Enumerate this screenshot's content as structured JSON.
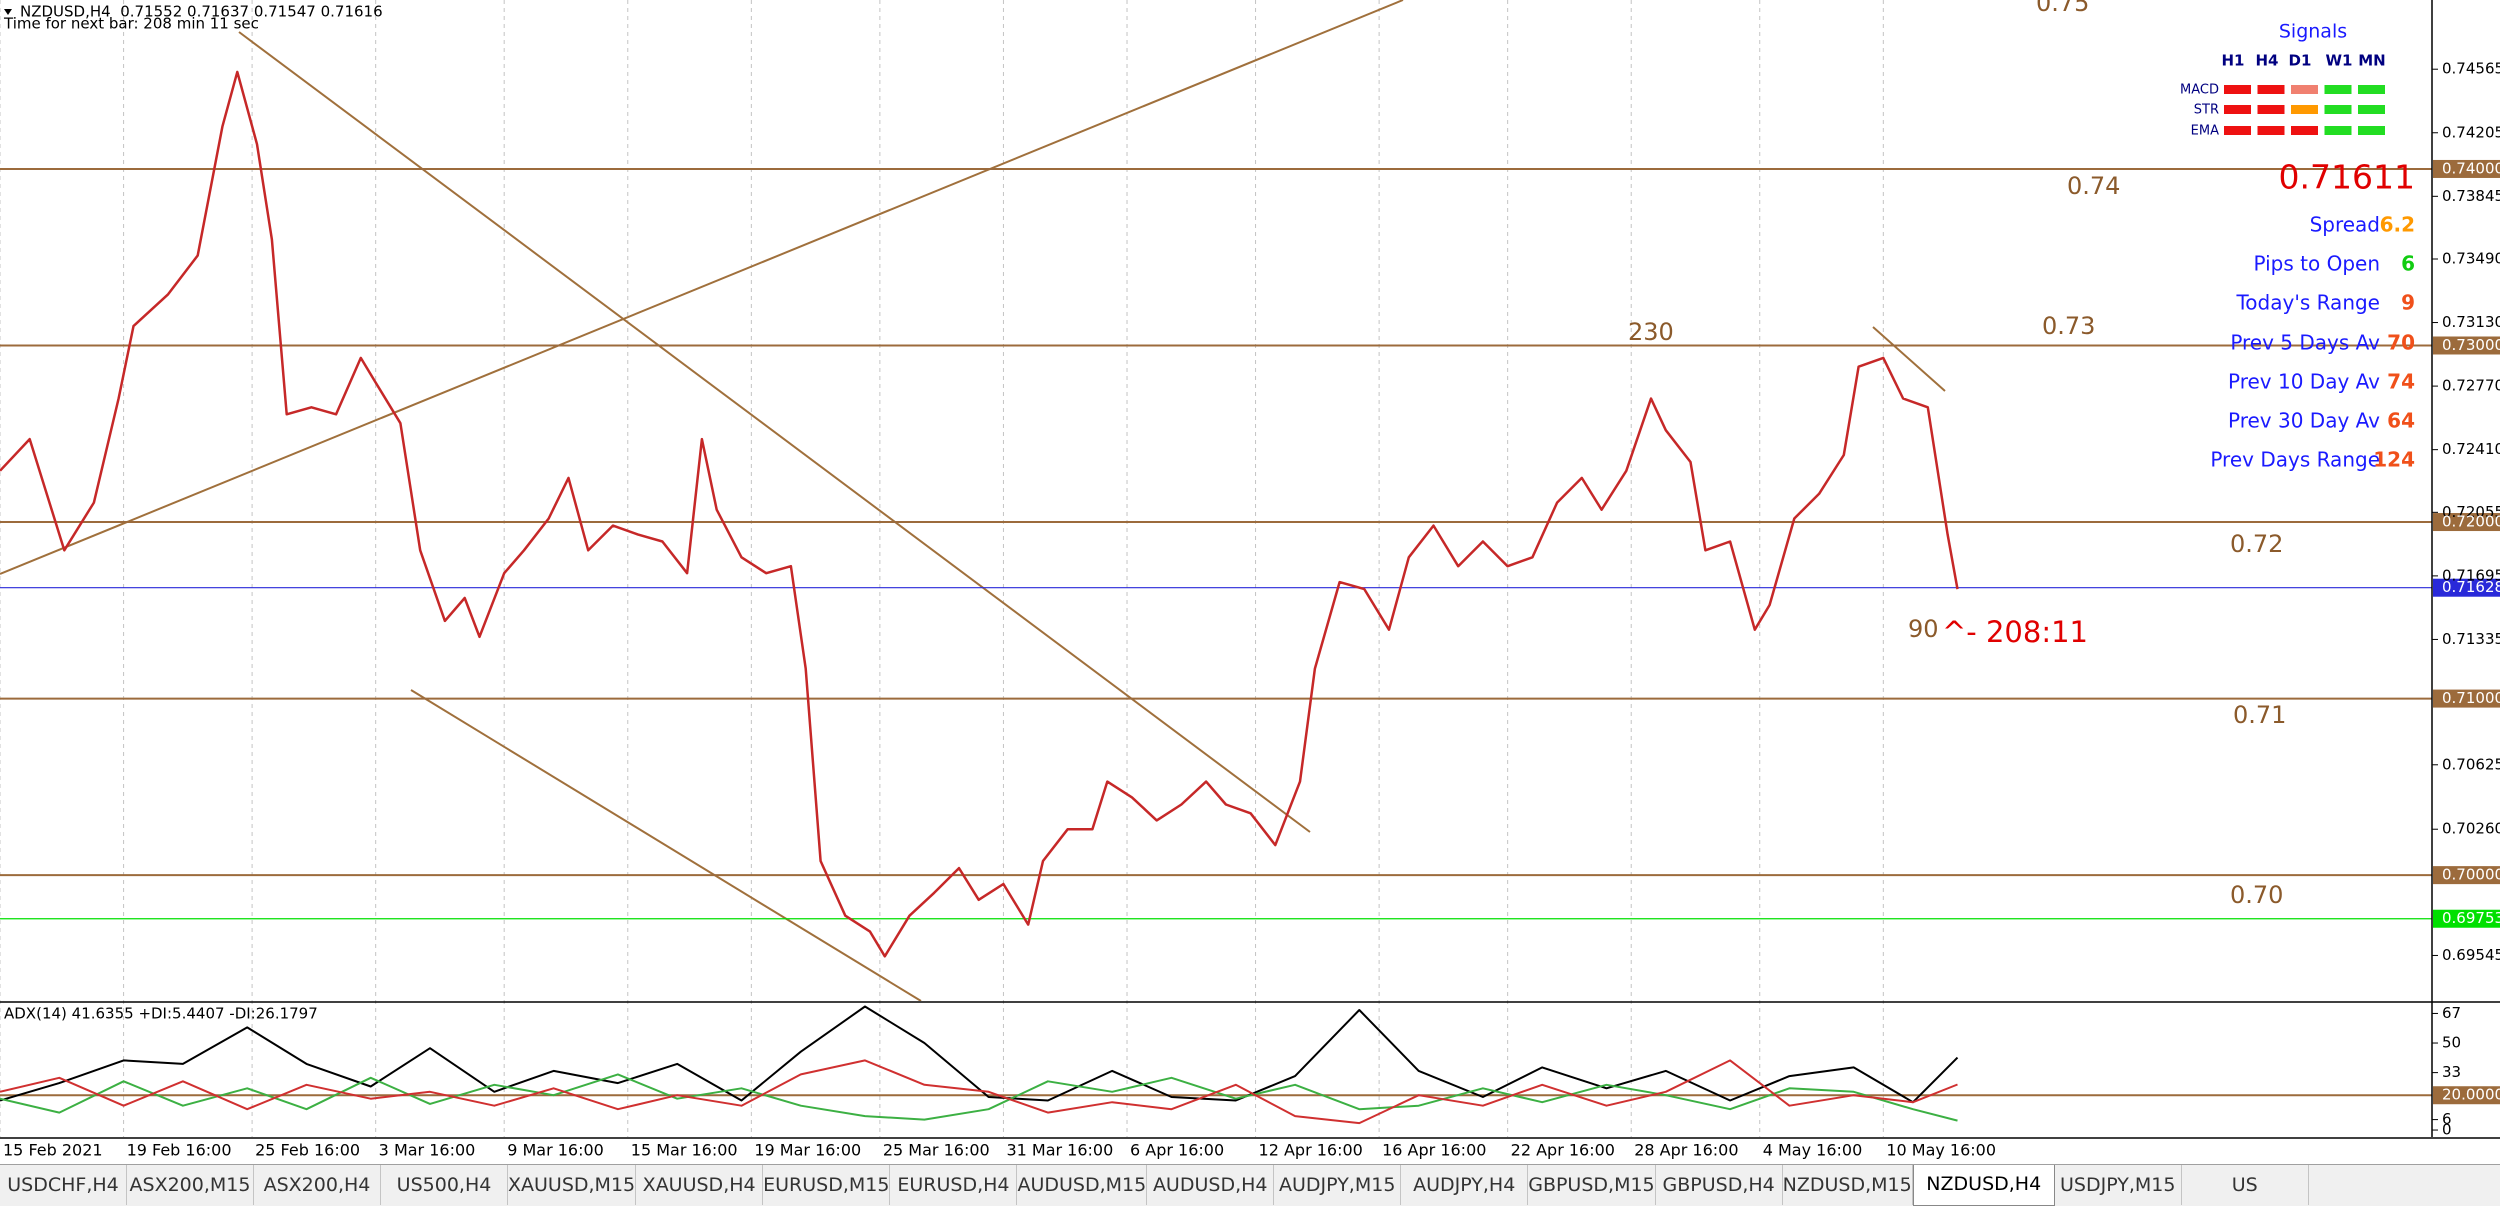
{
  "header": {
    "symbol_line": "NZDUSD,H4  0.71552 0.71637 0.71547 0.71616",
    "timer": "Time for next bar: 208 min 11 sec"
  },
  "chart_data": [
    {
      "type": "line",
      "color": "#c62828",
      "x": [
        0,
        6,
        13,
        19,
        24,
        27,
        34,
        40,
        45,
        48,
        52,
        55,
        58,
        63,
        68,
        73,
        76,
        81,
        85,
        90,
        94,
        97,
        102,
        106,
        111,
        115,
        119,
        124,
        129,
        134,
        139,
        142,
        145,
        150,
        155,
        160,
        163,
        166,
        171,
        176,
        179,
        184,
        189,
        194,
        198,
        203,
        208,
        211,
        216,
        221,
        224,
        229,
        234,
        239,
        244,
        248,
        253,
        258,
        263,
        266,
        271,
        276,
        281,
        285,
        290,
        295,
        300,
        305,
        310,
        315,
        320,
        324,
        329,
        334,
        337,
        342,
        345,
        350,
        355,
        358,
        363,
        368,
        373,
        376,
        381,
        385,
        390,
        394,
        396
      ],
      "values": [
        0.7229,
        0.7247,
        0.7184,
        0.7211,
        0.727,
        0.7311,
        0.7329,
        0.7351,
        0.7424,
        0.7455,
        0.7414,
        0.736,
        0.7261,
        0.7265,
        0.7261,
        0.7293,
        0.7279,
        0.7256,
        0.7184,
        0.7144,
        0.7157,
        0.7135,
        0.7171,
        0.7184,
        0.7202,
        0.7225,
        0.7184,
        0.7198,
        0.7193,
        0.7189,
        0.7171,
        0.7247,
        0.7207,
        0.718,
        0.7171,
        0.7175,
        0.7117,
        0.7008,
        0.6977,
        0.6968,
        0.6954,
        0.6977,
        0.699,
        0.7004,
        0.6986,
        0.6995,
        0.6972,
        0.7008,
        0.7026,
        0.7026,
        0.7053,
        0.7044,
        0.7031,
        0.704,
        0.7053,
        0.704,
        0.7035,
        0.7017,
        0.7053,
        0.7117,
        0.7166,
        0.7162,
        0.7139,
        0.718,
        0.7198,
        0.7175,
        0.7189,
        0.7175,
        0.718,
        0.7211,
        0.7225,
        0.7207,
        0.7229,
        0.727,
        0.7252,
        0.7234,
        0.7184,
        0.7189,
        0.7139,
        0.7153,
        0.7202,
        0.7216,
        0.7238,
        0.7288,
        0.7293,
        0.727,
        0.7265,
        0.7193,
        0.7162
      ],
      "xlim": [
        0,
        492
      ],
      "xticks": [
        {
          "value": 0,
          "label": "15 Feb 2021"
        },
        {
          "value": 25,
          "label": "19 Feb 16:00"
        },
        {
          "value": 51,
          "label": "25 Feb 16:00"
        },
        {
          "value": 76,
          "label": "3 Mar 16:00"
        },
        {
          "value": 102,
          "label": "9 Mar 16:00"
        },
        {
          "value": 127,
          "label": "15 Mar 16:00"
        },
        {
          "value": 152,
          "label": "19 Mar 16:00"
        },
        {
          "value": 178,
          "label": "25 Mar 16:00"
        },
        {
          "value": 203,
          "label": "31 Mar 16:00"
        },
        {
          "value": 228,
          "label": "6 Apr 16:00"
        },
        {
          "value": 254,
          "label": "12 Apr 16:00"
        },
        {
          "value": 279,
          "label": "16 Apr 16:00"
        },
        {
          "value": 305,
          "label": "22 Apr 16:00"
        },
        {
          "value": 330,
          "label": "28 Apr 16:00"
        },
        {
          "value": 356,
          "label": "4 May 16:00"
        },
        {
          "value": 381,
          "label": "10 May 16:00"
        }
      ],
      "ylim": [
        0.69287,
        0.74957
      ],
      "yticks": [
        0.74565,
        0.74205,
        0.73845,
        {
          "value": 0.7349,
          "label": "0.73490"
        },
        {
          "value": 0.7313,
          "label": "0.73130"
        },
        {
          "value": 0.7277,
          "label": "0.72770"
        },
        {
          "value": 0.7241,
          "label": "0.72410"
        },
        0.72055,
        0.71695,
        0.71335,
        0.70625,
        {
          "value": 0.7026,
          "label": "0.70260"
        },
        0.69545
      ],
      "levels": [
        {
          "value": 0.75,
          "label": "0.75"
        },
        {
          "value": 0.74,
          "label": "0.74",
          "axis_label": "0.74000"
        },
        {
          "value": 0.73,
          "label": "0.73",
          "axis_label": "0.73000"
        },
        {
          "value": 0.72,
          "label": "0.72",
          "axis_label": "0.72000"
        },
        {
          "value": 0.71,
          "label": "0.71",
          "axis_label": "0.71000"
        },
        {
          "value": 0.7,
          "label": "0.70",
          "axis_label": "0.70000"
        }
      ],
      "level_color": "#9c6b3c",
      "bid_line": 0.71628,
      "bid_color": "#2929d9",
      "alert_line": 0.69753,
      "alert_color": "#00e000",
      "annotations": [
        "230",
        "90",
        "^- 208:11"
      ],
      "grid": true
    },
    {
      "type": "line",
      "title": "ADX(14) 41.6355 +DI:5.4407 -DI:26.1797",
      "x": [
        0,
        12,
        25,
        37,
        50,
        62,
        75,
        87,
        100,
        112,
        125,
        137,
        150,
        162,
        175,
        187,
        200,
        212,
        225,
        237,
        250,
        262,
        275,
        287,
        300,
        312,
        325,
        337,
        350,
        362,
        375,
        387,
        396
      ],
      "series": [
        {
          "color": "#000000",
          "values": [
            17,
            27,
            40,
            38,
            59,
            38,
            25,
            47,
            22,
            34,
            27,
            38,
            17,
            45,
            71,
            50,
            19,
            17,
            34,
            19,
            17,
            31,
            69,
            34,
            19,
            36,
            24,
            34,
            17,
            31,
            36,
            16,
            41.6355
          ]
        },
        {
          "color": "#3cb043",
          "values": [
            18,
            10,
            28,
            14,
            24,
            12,
            30,
            15,
            26,
            20,
            32,
            18,
            24,
            14,
            8,
            6,
            12,
            28,
            22,
            30,
            18,
            26,
            12,
            14,
            24,
            16,
            26,
            20,
            12,
            24,
            22,
            12,
            5.4407
          ]
        },
        {
          "color": "#d03030",
          "values": [
            22,
            30,
            14,
            28,
            12,
            26,
            18,
            22,
            14,
            24,
            12,
            20,
            14,
            32,
            40,
            26,
            22,
            10,
            16,
            12,
            26,
            8,
            4,
            20,
            14,
            26,
            14,
            22,
            40,
            14,
            20,
            16,
            26.1797
          ]
        }
      ],
      "xlim": [
        0,
        492
      ],
      "ylim": [
        -4,
        73
      ],
      "yticks": [
        67,
        50,
        33,
        6,
        0
      ],
      "level": {
        "value": 20,
        "label": "20.0000"
      }
    }
  ],
  "signals": {
    "title": "Signals",
    "columns": [
      "H1",
      "H4",
      "D1",
      "W1",
      "MN"
    ],
    "rows": [
      {
        "label": "MACD",
        "colors": [
          "#ee1111",
          "#ee1111",
          "#f08070",
          "#22dd22",
          "#22dd22"
        ]
      },
      {
        "label": "STR",
        "colors": [
          "#ee1111",
          "#ee1111",
          "#ff9900",
          "#22dd22",
          "#22dd22"
        ]
      },
      {
        "label": "EMA",
        "colors": [
          "#ee1111",
          "#ee1111",
          "#ee1111",
          "#22dd22",
          "#22dd22"
        ]
      }
    ]
  },
  "info": {
    "price": "0.71611",
    "rows": [
      {
        "label": "Spread",
        "value": 6.2,
        "color": "#ff9900"
      },
      {
        "label": "Pips to Open",
        "value": 6,
        "color": "#11cc11"
      },
      {
        "label": "Today's Range",
        "value": 9,
        "color": "#f0501a"
      },
      {
        "label": "Prev 5 Days Av",
        "value": 70,
        "color": "#f0501a"
      },
      {
        "label": "Prev 10 Day Av",
        "value": 74,
        "color": "#f0501a"
      },
      {
        "label": "Prev 30 Day Av",
        "value": 64,
        "color": "#f0501a"
      },
      {
        "label": "Prev Days Range",
        "value": 124,
        "color": "#f0501a"
      }
    ]
  },
  "tabs": {
    "items": [
      "USDCHF,H4",
      "ASX200,M15",
      "ASX200,H4",
      "US500,H4",
      "XAUUSD,M15",
      "XAUUSD,H4",
      "EURUSD,M15",
      "EURUSD,H4",
      "AUDUSD,M15",
      "AUDUSD,H4",
      "AUDJPY,M15",
      "AUDJPY,H4",
      "GBPUSD,M15",
      "GBPUSD,H4",
      "NZDUSD,M15",
      "NZDUSD,H4",
      "USDJPY,M15",
      "US"
    ],
    "active": 15
  }
}
